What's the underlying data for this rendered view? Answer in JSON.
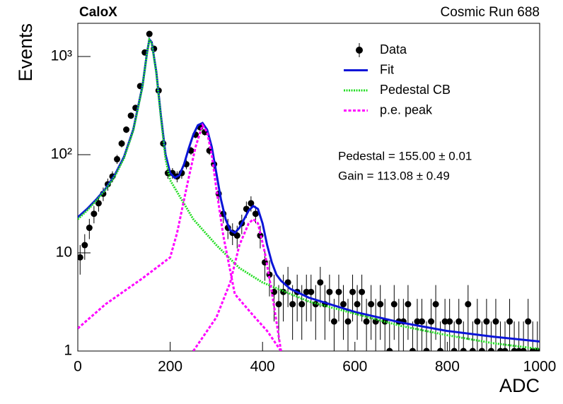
{
  "chart_data": {
    "type": "errorbar",
    "title": "CaloX",
    "subtitle": "Cosmic Run 688",
    "xlabel": "ADC",
    "ylabel": "Events",
    "annotations": [
      "Pedestal = 155.00 ± 0.01",
      "Gain = 113.08 ± 0.49"
    ],
    "xlim": [
      0,
      1000
    ],
    "ylim": [
      1,
      2180
    ],
    "log_y": true,
    "grid": false,
    "legend_position": "upper right",
    "xticks": [
      0,
      200,
      400,
      600,
      800,
      1000
    ],
    "yticks": [
      1,
      10,
      {
        "value": 100,
        "label": "10²"
      },
      {
        "value": 1000,
        "label": "10³"
      }
    ],
    "series": [
      {
        "name": "Data",
        "color": "#000000",
        "style": "points",
        "x": [
          5,
          15,
          25,
          35,
          45,
          55,
          65,
          75,
          85,
          95,
          105,
          115,
          125,
          135,
          145,
          155,
          165,
          175,
          185,
          195,
          205,
          215,
          225,
          235,
          245,
          255,
          265,
          275,
          285,
          295,
          305,
          315,
          325,
          335,
          345,
          355,
          365,
          375,
          385,
          395,
          405,
          415,
          425,
          435,
          445,
          455,
          465,
          475,
          485,
          495,
          505,
          515,
          525,
          535,
          545,
          555,
          565,
          575,
          585,
          595,
          605,
          615,
          625,
          635,
          645,
          655,
          665,
          675,
          685,
          695,
          705,
          715,
          725,
          735,
          745,
          755,
          765,
          775,
          785,
          795,
          805,
          815,
          825,
          835,
          845,
          855,
          865,
          875,
          885,
          895,
          905,
          915,
          925,
          935,
          945,
          955,
          965,
          975,
          985,
          995
        ],
        "values": [
          9,
          12,
          18,
          25,
          32,
          40,
          50,
          60,
          90,
          130,
          180,
          250,
          300,
          500,
          1100,
          1700,
          1200,
          450,
          130,
          65,
          65,
          60,
          65,
          80,
          110,
          160,
          190,
          170,
          110,
          80,
          40,
          25,
          18,
          16,
          15,
          20,
          28,
          32,
          25,
          15,
          8,
          6,
          4,
          3,
          4,
          5,
          3,
          4,
          3,
          4,
          4,
          3,
          5,
          3,
          4,
          2,
          4,
          3,
          2,
          4,
          3,
          4,
          2,
          3,
          2,
          3,
          2,
          1,
          3,
          2,
          2,
          3,
          1,
          2,
          2,
          1,
          2,
          3,
          1,
          2,
          2,
          1,
          2,
          1,
          3,
          1,
          2,
          1,
          2,
          1,
          2,
          1,
          1,
          2,
          1,
          1,
          1,
          2,
          1,
          1
        ],
        "errors": [
          3,
          3.5,
          4.2,
          5,
          5.7,
          6.3,
          7.1,
          7.7,
          9.5,
          11.4,
          13.4,
          15.8,
          17.3,
          22.4,
          33.2,
          41.2,
          34.6,
          21.2,
          11.4,
          8.1,
          8.1,
          7.7,
          8.1,
          8.9,
          10.5,
          12.6,
          13.8,
          13,
          10.5,
          8.9,
          6.3,
          5,
          4.2,
          4,
          3.9,
          4.5,
          5.3,
          5.7,
          5,
          3.9,
          2.8,
          2.4,
          2,
          1.7,
          2,
          2.2,
          1.7,
          2,
          1.7,
          2,
          2,
          1.7,
          2.2,
          1.7,
          2,
          1.4,
          2,
          1.7,
          1.4,
          2,
          1.7,
          2,
          1.4,
          1.7,
          1.4,
          1.7,
          1.4,
          1,
          1.7,
          1.4,
          1.4,
          1.7,
          1,
          1.4,
          1.4,
          1,
          1.4,
          1.7,
          1,
          1.4,
          1.4,
          1,
          1.4,
          1,
          1.7,
          1,
          1.4,
          1,
          1.4,
          1,
          1.4,
          1,
          1,
          1.4,
          1,
          1,
          1,
          1.4,
          1,
          1
        ]
      },
      {
        "name": "Fit",
        "color": "#0a14d8",
        "style": "solid",
        "x": [
          0,
          20,
          40,
          60,
          80,
          100,
          120,
          140,
          150,
          155,
          160,
          170,
          180,
          190,
          200,
          210,
          220,
          230,
          240,
          250,
          260,
          270,
          280,
          290,
          300,
          310,
          320,
          330,
          340,
          350,
          360,
          370,
          380,
          390,
          400,
          410,
          420,
          430,
          440,
          460,
          500,
          600,
          700,
          800,
          900,
          1000
        ],
        "values": [
          23,
          28,
          35,
          45,
          62,
          95,
          180,
          500,
          1100,
          1500,
          1400,
          700,
          250,
          100,
          65,
          58,
          62,
          80,
          115,
          160,
          200,
          210,
          180,
          120,
          65,
          35,
          22,
          17,
          16,
          18,
          22,
          27,
          30,
          28,
          20,
          12,
          8,
          6,
          5.2,
          4.3,
          3.5,
          2.5,
          1.95,
          1.6,
          1.4,
          1.25
        ]
      },
      {
        "name": "Pedestal CB",
        "color": "#22dd22",
        "style": "dotted",
        "x": [
          0,
          20,
          40,
          60,
          80,
          100,
          120,
          140,
          150,
          155,
          160,
          170,
          180,
          190,
          200,
          220,
          250,
          300,
          350,
          400,
          450,
          500,
          600,
          700,
          800,
          900,
          1000
        ],
        "values": [
          22,
          27,
          34,
          44,
          60,
          92,
          175,
          490,
          1080,
          1480,
          1380,
          680,
          240,
          90,
          55,
          38,
          22,
          12,
          7,
          5,
          4,
          3.2,
          2.4,
          1.8,
          1.45,
          1.2,
          1.05
        ]
      },
      {
        "name": "p.e. peak",
        "color": "#ff00ff",
        "style": "dashed",
        "segments": [
          {
            "x": [
              0,
              60,
              140,
              200,
              215,
              237,
              255,
              270,
              280,
              290,
              300,
              315,
              340,
              380,
              410,
              440
            ],
            "values": [
              1.7,
              3,
              5.5,
              9,
              16,
              50,
              120,
              200,
              170,
              100,
              45,
              15,
              3.8,
              2.3,
              1.6,
              1
            ]
          },
          {
            "x": [
              250,
              300,
              330,
              350,
              370,
              380,
              390,
              405,
              420,
              440
            ],
            "values": [
              1,
              2.2,
              5,
              12,
              20,
              22,
              20,
              10,
              4,
              1
            ]
          }
        ]
      }
    ]
  }
}
